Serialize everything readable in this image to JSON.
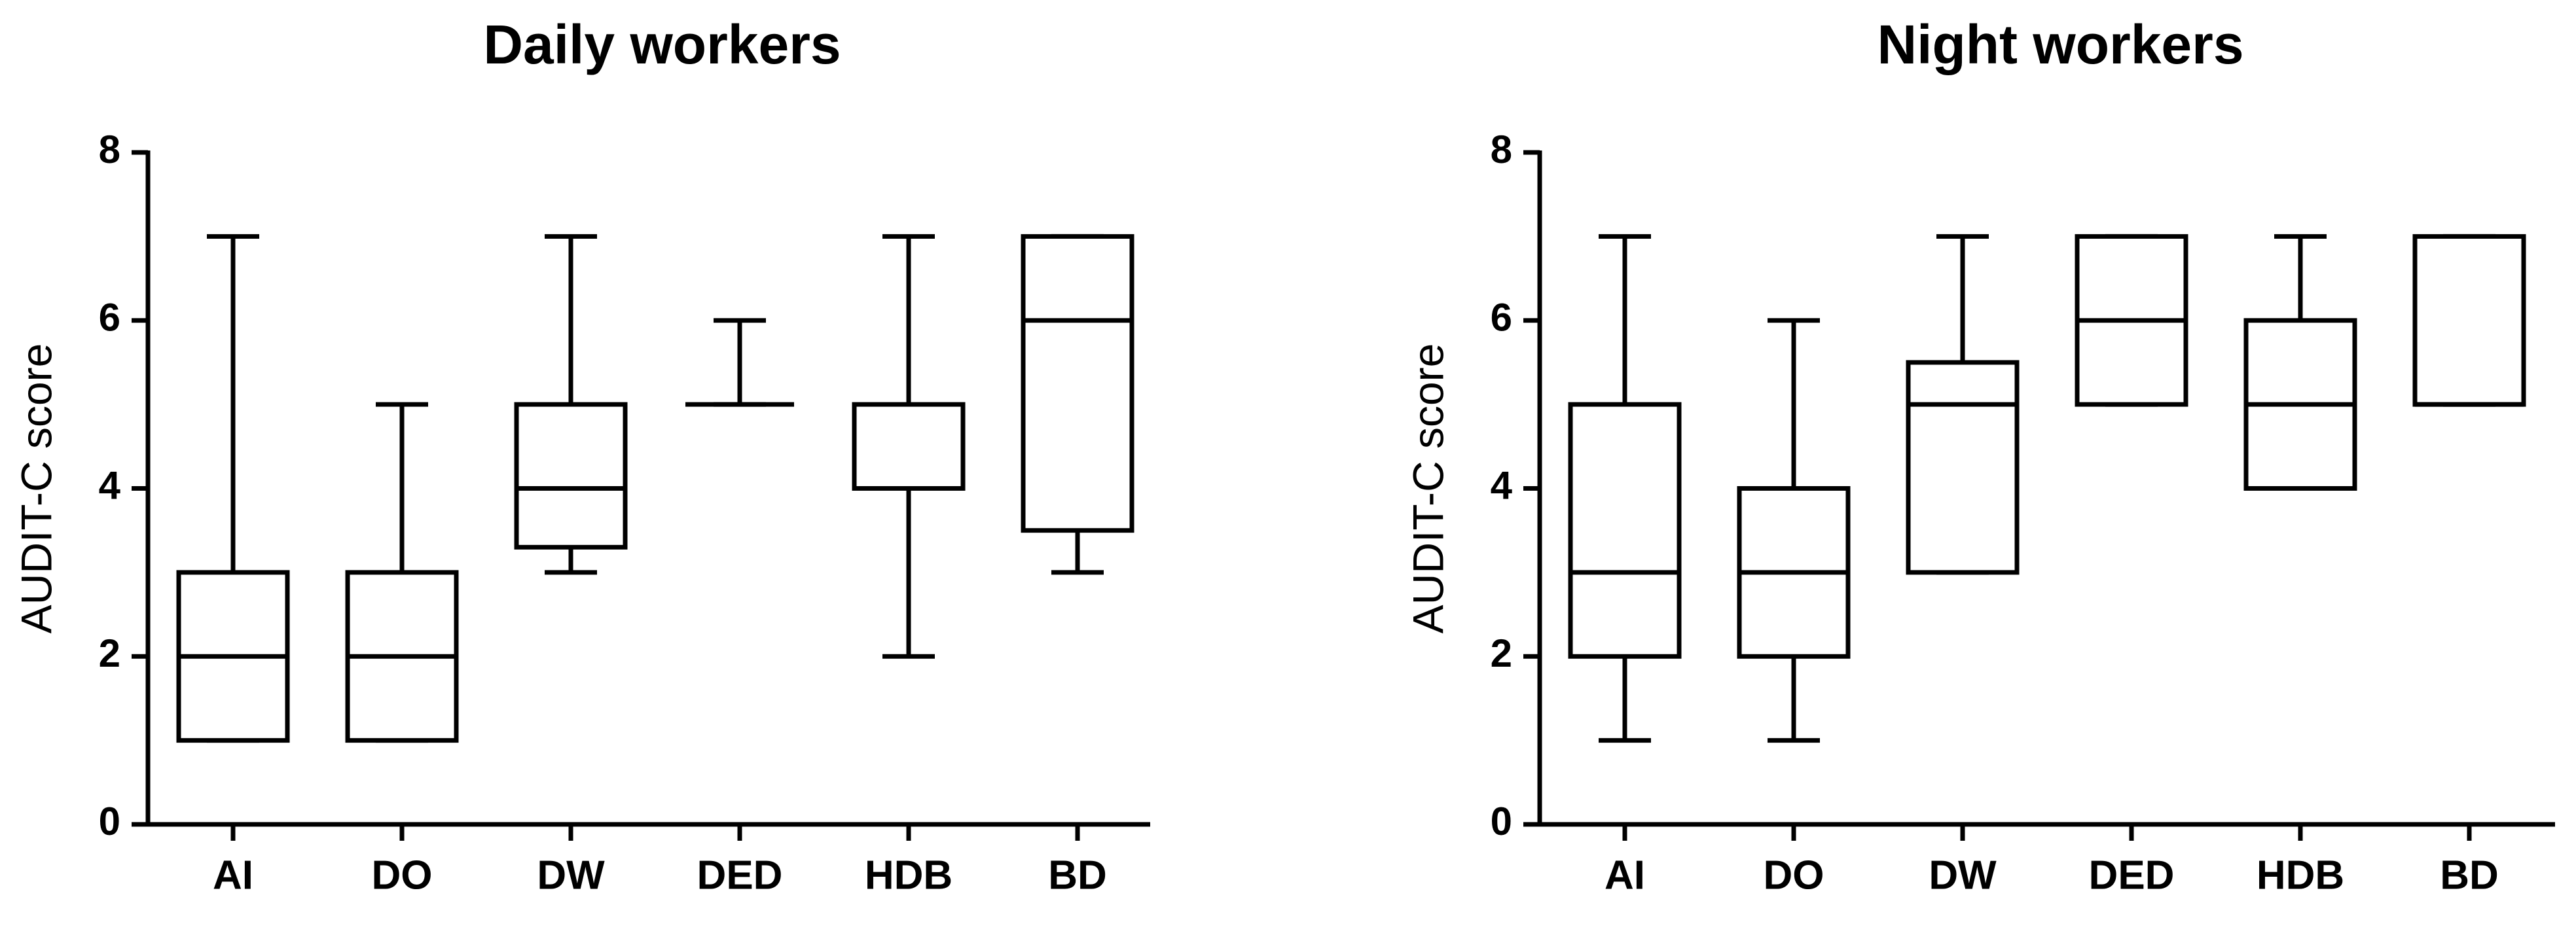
{
  "chart_data": [
    {
      "type": "box",
      "title": "Daily workers",
      "ylabel": "AUDIT-C score",
      "categories": [
        "AI",
        "DO",
        "DW",
        "DED",
        "HDB",
        "BD"
      ],
      "min": [
        1,
        1,
        3,
        5,
        2,
        3
      ],
      "q1": [
        1,
        1,
        3.3,
        5,
        4,
        3.5
      ],
      "median": [
        2,
        2,
        4,
        5,
        4,
        6
      ],
      "q3": [
        3,
        3,
        5,
        5,
        5,
        7
      ],
      "max": [
        7,
        5,
        7,
        6,
        7,
        7
      ],
      "color": "#000000",
      "ylim": [
        0,
        8
      ],
      "yticks": [
        0,
        2,
        4,
        6,
        8
      ]
    },
    {
      "type": "box",
      "title": "Night workers",
      "ylabel": "AUDIT-C score",
      "categories": [
        "AI",
        "DO",
        "DW",
        "DED",
        "HDB",
        "BD"
      ],
      "min": [
        1,
        1,
        3,
        5,
        4,
        5
      ],
      "q1": [
        2,
        2,
        3,
        5,
        4,
        5
      ],
      "median": [
        3,
        3,
        5,
        6,
        5,
        5
      ],
      "q3": [
        5,
        4,
        5.5,
        7,
        6,
        7
      ],
      "max": [
        7,
        6,
        7,
        7,
        7,
        7
      ],
      "color": "#000000",
      "ylim": [
        0,
        8
      ],
      "yticks": [
        0,
        2,
        4,
        6,
        8
      ]
    }
  ]
}
